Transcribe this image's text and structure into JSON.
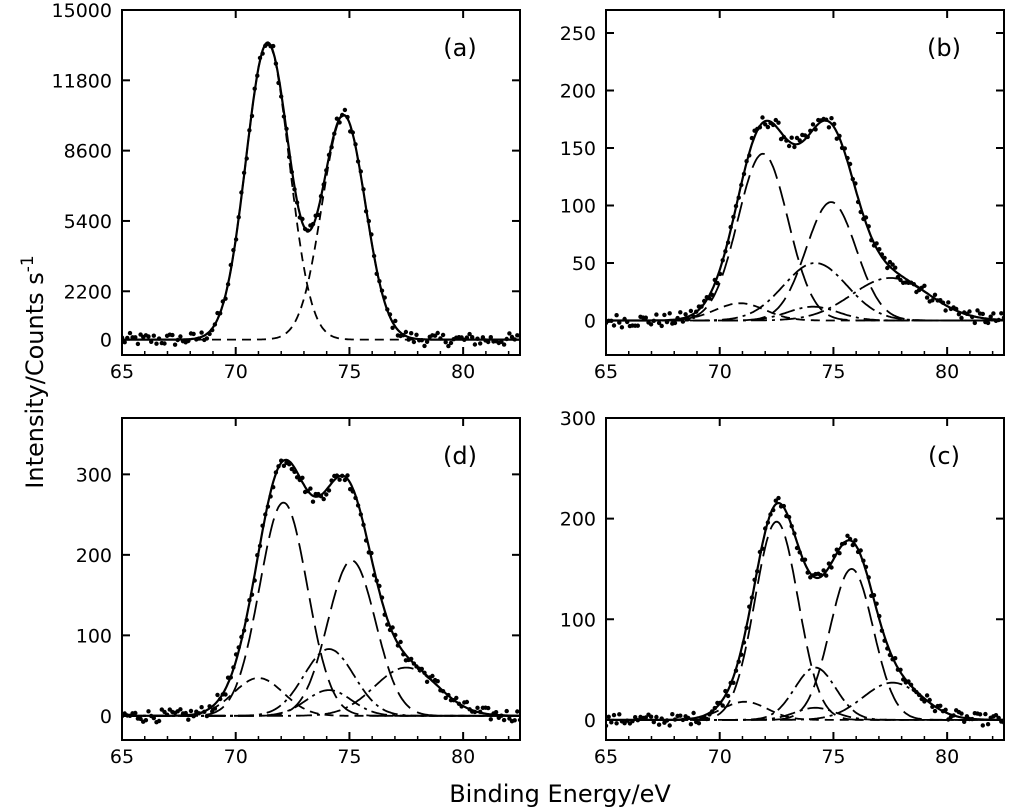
{
  "figure": {
    "ylabel": "Intensity/Counts s",
    "ylabel_sup": "-1",
    "xlabel": "Binding Energy/eV"
  },
  "chart_data": [
    {
      "panel": "(a)",
      "type": "line",
      "xlim": [
        65,
        82.5
      ],
      "ylim": [
        -700,
        15000
      ],
      "xticks": [
        65,
        70,
        75,
        80
      ],
      "yticks": [
        0,
        2200,
        5400,
        8600,
        11800,
        15000
      ],
      "ytick_labels": [
        "0",
        "2200",
        "5400",
        "8600",
        "11800",
        "15000"
      ],
      "baseline": 0,
      "peaks": [
        {
          "center": 71.4,
          "height": 13500,
          "sigma": 0.95
        },
        {
          "center": 74.75,
          "height": 10200,
          "sigma": 0.95
        }
      ],
      "components": [
        {
          "style": "dashed",
          "peaks": [
            0
          ]
        },
        {
          "style": "dashed",
          "peaks": [
            1
          ]
        }
      ],
      "noise_amplitude": 300
    },
    {
      "panel": "(b)",
      "type": "line",
      "xlim": [
        65,
        82.5
      ],
      "ylim": [
        -30,
        270
      ],
      "xticks": [
        65,
        70,
        75,
        80
      ],
      "yticks": [
        0,
        50,
        100,
        150,
        200,
        250
      ],
      "ytick_labels": [
        "0",
        "50",
        "100",
        "150",
        "200",
        "250"
      ],
      "baseline": 0,
      "peaks": [
        {
          "center": 71.9,
          "height": 145,
          "sigma": 1.1
        },
        {
          "center": 74.9,
          "height": 103,
          "sigma": 1.1
        },
        {
          "center": 74.2,
          "height": 50,
          "sigma": 1.4
        },
        {
          "center": 70.9,
          "height": 15,
          "sigma": 1.1
        },
        {
          "center": 74.1,
          "height": 12,
          "sigma": 1.1
        },
        {
          "center": 77.5,
          "height": 37,
          "sigma": 1.7
        }
      ],
      "components": [
        {
          "style": "longdash",
          "peaks": [
            0
          ]
        },
        {
          "style": "longdash",
          "peaks": [
            1
          ]
        },
        {
          "style": "dashdot",
          "peaks": [
            2
          ]
        },
        {
          "style": "dashed",
          "peaks": [
            3
          ]
        },
        {
          "style": "dashdot",
          "peaks": [
            4
          ]
        },
        {
          "style": "dashdot",
          "peaks": [
            5
          ]
        }
      ],
      "noise_amplitude": 6
    },
    {
      "panel": "(d)",
      "type": "line",
      "xlim": [
        65,
        82.5
      ],
      "ylim": [
        -30,
        370
      ],
      "xticks": [
        65,
        70,
        75,
        80
      ],
      "yticks": [
        0,
        100,
        200,
        300
      ],
      "ytick_labels": [
        "0",
        "100",
        "200",
        "300"
      ],
      "baseline": 0,
      "peaks": [
        {
          "center": 72.1,
          "height": 265,
          "sigma": 1.05
        },
        {
          "center": 75.1,
          "height": 193,
          "sigma": 1.05
        },
        {
          "center": 74.1,
          "height": 83,
          "sigma": 1.1
        },
        {
          "center": 71.0,
          "height": 47,
          "sigma": 1.1
        },
        {
          "center": 74.1,
          "height": 32,
          "sigma": 1.0
        },
        {
          "center": 77.5,
          "height": 60,
          "sigma": 1.4
        }
      ],
      "components": [
        {
          "style": "longdash",
          "peaks": [
            0
          ]
        },
        {
          "style": "longdash",
          "peaks": [
            1
          ]
        },
        {
          "style": "dashdot",
          "peaks": [
            2
          ]
        },
        {
          "style": "dashed",
          "peaks": [
            3
          ]
        },
        {
          "style": "dashdot",
          "peaks": [
            4
          ]
        },
        {
          "style": "dashdot",
          "peaks": [
            5
          ]
        }
      ],
      "noise_amplitude": 8
    },
    {
      "panel": "(c)",
      "type": "line",
      "xlim": [
        65,
        82.5
      ],
      "ylim": [
        -20,
        300
      ],
      "xticks": [
        65,
        70,
        75,
        80
      ],
      "yticks": [
        0,
        100,
        200,
        300
      ],
      "ytick_labels": [
        "0",
        "100",
        "200",
        "300"
      ],
      "baseline": 0,
      "peaks": [
        {
          "center": 72.5,
          "height": 197,
          "sigma": 0.95
        },
        {
          "center": 75.8,
          "height": 150,
          "sigma": 0.95
        },
        {
          "center": 74.2,
          "height": 52,
          "sigma": 0.9
        },
        {
          "center": 71.1,
          "height": 18,
          "sigma": 1.0
        },
        {
          "center": 74.2,
          "height": 12,
          "sigma": 0.9
        },
        {
          "center": 77.6,
          "height": 37,
          "sigma": 1.3
        }
      ],
      "components": [
        {
          "style": "longdash",
          "peaks": [
            0
          ]
        },
        {
          "style": "longdash",
          "peaks": [
            1
          ]
        },
        {
          "style": "dashdot",
          "peaks": [
            2
          ]
        },
        {
          "style": "dashed",
          "peaks": [
            3
          ]
        },
        {
          "style": "dashdot",
          "peaks": [
            4
          ]
        },
        {
          "style": "dashdot",
          "peaks": [
            5
          ]
        }
      ],
      "noise_amplitude": 6
    }
  ]
}
